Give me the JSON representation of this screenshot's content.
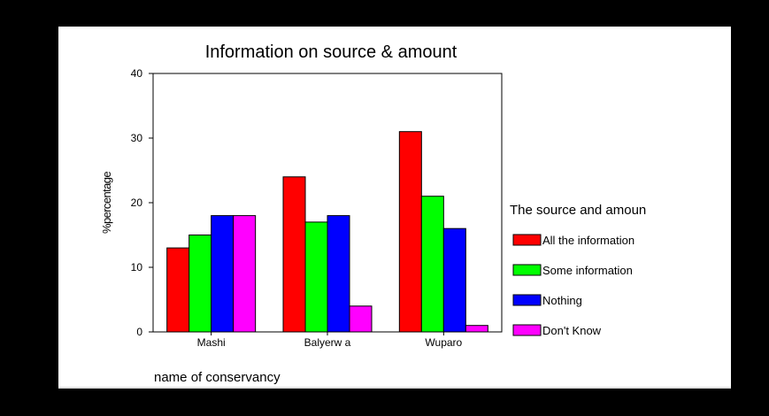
{
  "chart_data": {
    "type": "bar",
    "title": "Information on source & amount",
    "xlabel": "name of conservancy",
    "ylabel": "%percentage",
    "categories": [
      "Mashi",
      "Balyerw a",
      "Wuparo"
    ],
    "ylim": [
      0,
      40
    ],
    "yticks": [
      0,
      10,
      20,
      30,
      40
    ],
    "grid": false,
    "legend_title": "The source and amoun",
    "legend_position": "right",
    "series": [
      {
        "name": "All the information",
        "color": "#ff0000",
        "values": [
          13,
          24,
          31
        ]
      },
      {
        "name": "Some information",
        "color": "#00ff00",
        "values": [
          15,
          17,
          21
        ]
      },
      {
        "name": "Nothing",
        "color": "#0000ff",
        "values": [
          18,
          18,
          16
        ]
      },
      {
        "name": "Don't Know",
        "color": "#ff00ff",
        "values": [
          18,
          4,
          1
        ]
      }
    ]
  }
}
